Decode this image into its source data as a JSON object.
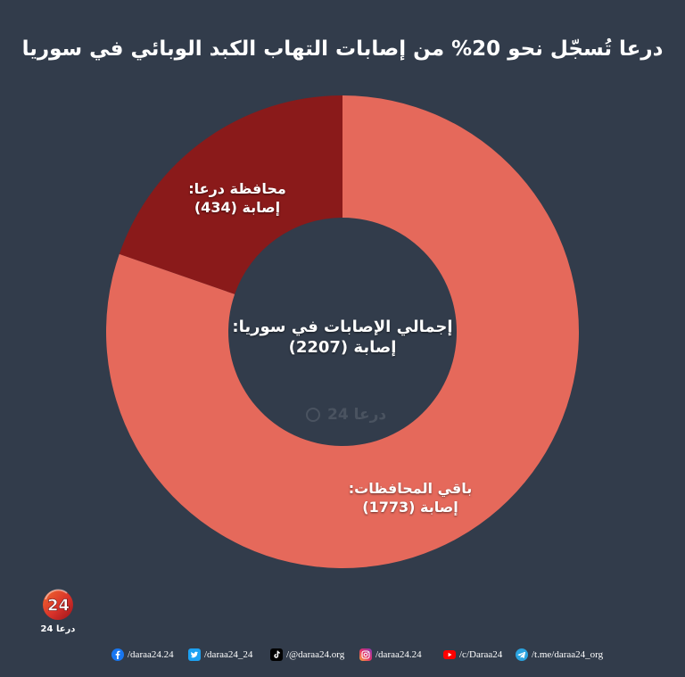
{
  "colors": {
    "background": "#323c4b",
    "text": "#ffffff"
  },
  "chart_data": {
    "type": "pie",
    "donut": true,
    "title": "درعا تُسجّل نحو 20% من إصابات التهاب الكبد الوبائي في سوريا",
    "categories": [
      "محافظة درعا:",
      "باقي المحافظات:"
    ],
    "values": [
      434,
      1773
    ],
    "data_labels": [
      "(434) إصابة",
      "(1773) إصابة"
    ],
    "colors": [
      "#8a1a1a",
      "#e5695b"
    ],
    "total": 2207,
    "center_label": {
      "text": "إجمالي الإصابات في سوريا:",
      "value_label": "(2207) إصابة"
    }
  },
  "watermark": {
    "text": "درعا 24",
    "icon": "daraa24-logo-icon"
  },
  "brand": {
    "logo_text": "24",
    "name": "درعا 24",
    "icon": "daraa24-logo-icon"
  },
  "social": [
    {
      "icon": "facebook-icon",
      "handle": "/daraa24.24",
      "color": "#1877f2"
    },
    {
      "icon": "twitter-icon",
      "handle": "/daraa24_24",
      "color": "#1da1f2"
    },
    {
      "icon": "tiktok-icon",
      "handle": "/@daraa24.org",
      "color": "#000000"
    },
    {
      "icon": "instagram-icon",
      "handle": "/daraa24.24",
      "color": "#e1306c"
    },
    {
      "icon": "youtube-icon",
      "handle": "/c/Daraa24",
      "color": "#ff0000"
    },
    {
      "icon": "telegram-icon",
      "handle": "/t.me/daraa24_org",
      "color": "#2aa3df"
    }
  ]
}
